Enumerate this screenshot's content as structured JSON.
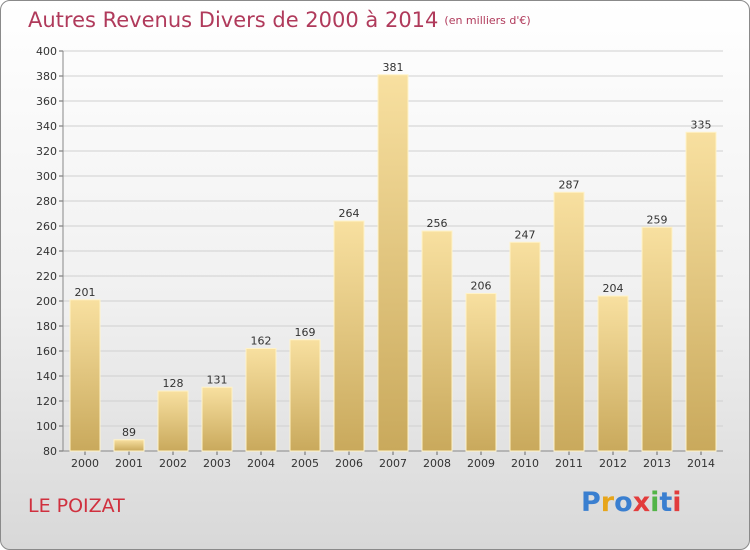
{
  "header": {
    "title": "Autres Revenus Divers de 2000 à 2014",
    "unit": "(en milliers d'€)"
  },
  "footer": {
    "place": "LE POIZAT",
    "logo": [
      "P",
      "r",
      "o",
      "x",
      "i",
      "t",
      "i"
    ],
    "logo_colors": [
      "#3a7fd0",
      "#e7a51a",
      "#3a7fd0",
      "#e23c3c",
      "#52b447",
      "#3a7fd0",
      "#e23c3c"
    ]
  },
  "colors": {
    "bar_top": "#f8e0a0",
    "bar_bottom": "#c9a95c",
    "grid": "#d0d0d0"
  },
  "chart_data": {
    "type": "bar",
    "categories": [
      "2000",
      "2001",
      "2002",
      "2003",
      "2004",
      "2005",
      "2006",
      "2007",
      "2008",
      "2009",
      "2010",
      "2011",
      "2012",
      "2013",
      "2014"
    ],
    "values": [
      201,
      89,
      128,
      131,
      162,
      169,
      264,
      381,
      256,
      206,
      247,
      287,
      204,
      259,
      335
    ],
    "ylim": [
      80,
      400
    ],
    "yticks": [
      80,
      100,
      120,
      140,
      160,
      180,
      200,
      220,
      240,
      260,
      280,
      300,
      320,
      340,
      360,
      380,
      400
    ],
    "grid": true,
    "xlabel": "",
    "ylabel": ""
  }
}
